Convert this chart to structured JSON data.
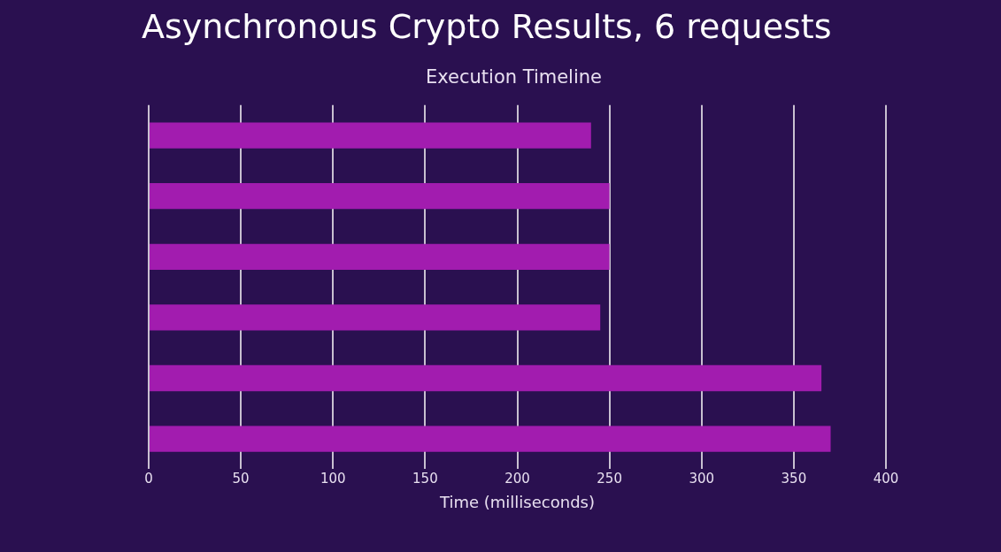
{
  "chart_data": {
    "type": "bar",
    "orientation": "horizontal",
    "title": "Asynchronous Crypto Results, 6 requests",
    "subtitle": "Execution Timeline",
    "xlabel": "Time (milliseconds)",
    "categories": [
      null,
      null,
      null,
      null,
      null,
      null
    ],
    "values": [
      240,
      250,
      250,
      245,
      365,
      370
    ],
    "color": "#a21caf",
    "xlim": [
      0,
      400
    ],
    "xticks": [
      0,
      50,
      100,
      150,
      200,
      250,
      300,
      350,
      400
    ],
    "grid": "x",
    "tick_labels": "x",
    "legend": false
  }
}
